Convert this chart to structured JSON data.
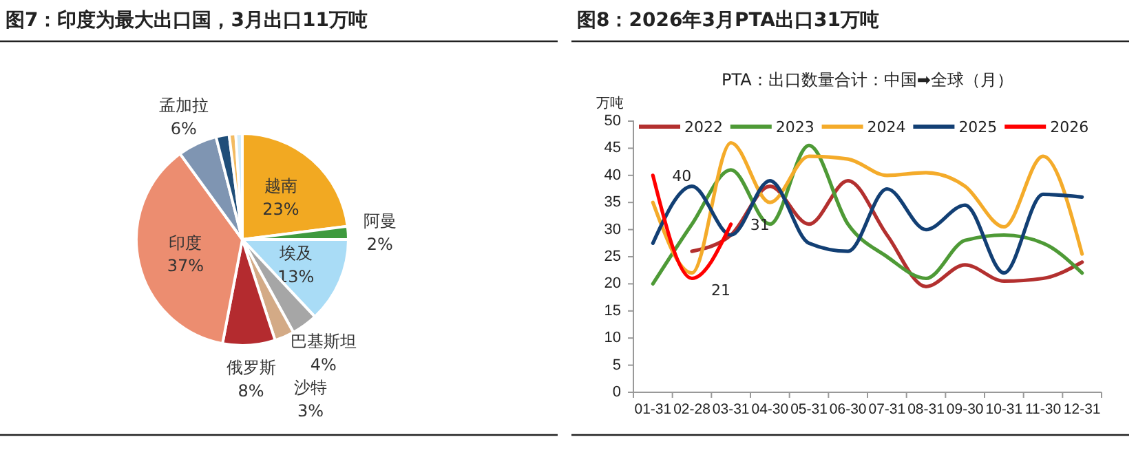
{
  "chart_data": [
    {
      "type": "pie",
      "title": "图7：印度为最大出口国，3月出口11万吨",
      "categories": [
        "越南",
        "阿曼",
        "埃及",
        "巴基斯坦",
        "沙特",
        "俄罗斯",
        "印度",
        "孟加拉",
        null,
        null,
        null
      ],
      "values": [
        23,
        2,
        13,
        4,
        3,
        8,
        37,
        6,
        2,
        1,
        1
      ],
      "colors": [
        "#f2a922",
        "#3e9a3e",
        "#a9dcf6",
        "#a6a6a6",
        "#d3aa86",
        "#b42b2f",
        "#ec8d70",
        "#7f95b2",
        "#1f4e79",
        "#f3bb62",
        "#d6edf9"
      ],
      "value_labels": [
        "23%",
        "2%",
        "13%",
        "4%",
        "3%",
        "8%",
        "37%",
        "6%",
        null,
        null,
        null
      ]
    },
    {
      "type": "line",
      "title": "图8：2026年3月PTA出口31万吨",
      "subtitle": "PTA：出口数量合计：中国➡全球（月）",
      "ylabel": "万吨",
      "categories": [
        "01-31",
        "02-28",
        "03-31",
        "04-30",
        "05-31",
        "06-30",
        "07-31",
        "08-31",
        "09-30",
        "10-31",
        "11-30",
        "12-31"
      ],
      "ylim": [
        0,
        50
      ],
      "yticks": [
        0,
        5,
        10,
        15,
        20,
        25,
        30,
        35,
        40,
        45,
        50
      ],
      "legend": "top",
      "grid": false,
      "series": [
        {
          "name": "2022",
          "color": "#b3302f",
          "values": [
            null,
            26,
            29,
            38,
            31,
            39,
            29,
            19.5,
            23.5,
            20.5,
            21,
            24
          ]
        },
        {
          "name": "2023",
          "color": "#4e9a36",
          "values": [
            20,
            31,
            41,
            31,
            45.5,
            31,
            25,
            21,
            28,
            29,
            27.5,
            22
          ]
        },
        {
          "name": "2024",
          "color": "#f4ab2a",
          "values": [
            35,
            22,
            46,
            35,
            43.5,
            43,
            40,
            40.5,
            38,
            30.5,
            43.5,
            25.5
          ]
        },
        {
          "name": "2025",
          "color": "#123f74",
          "values": [
            27.5,
            38,
            29,
            39,
            27.5,
            26,
            37.5,
            30,
            34.5,
            22,
            36.5,
            36
          ]
        },
        {
          "name": "2026",
          "color": "#ff0000",
          "values": [
            40,
            21,
            31,
            null,
            null,
            null,
            null,
            null,
            null,
            null,
            null,
            null
          ],
          "value_labels": [
            "40",
            "21",
            "31",
            null,
            null,
            null,
            null,
            null,
            null,
            null,
            null,
            null
          ]
        }
      ]
    }
  ]
}
